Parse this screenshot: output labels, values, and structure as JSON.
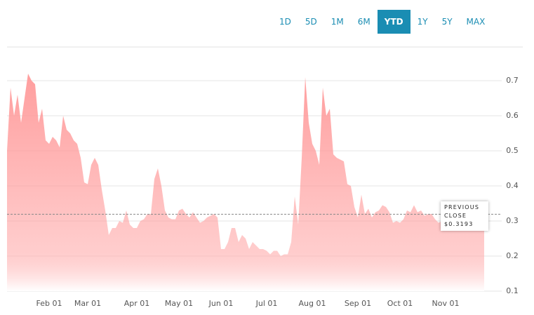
{
  "range_buttons": {
    "options": [
      "1D",
      "5D",
      "1M",
      "6M",
      "YTD",
      "1Y",
      "5Y",
      "MAX"
    ],
    "selected_index": 4
  },
  "chart_data": {
    "type": "area",
    "color": "#ff9999",
    "categories": [
      null,
      null,
      null,
      null,
      null,
      null,
      null,
      null,
      null,
      null,
      null,
      null,
      "Feb 01",
      null,
      null,
      null,
      null,
      null,
      null,
      null,
      null,
      null,
      null,
      "Mar 01",
      null,
      null,
      null,
      null,
      null,
      null,
      null,
      null,
      null,
      null,
      null,
      null,
      null,
      "Apr 01",
      null,
      null,
      null,
      null,
      null,
      null,
      null,
      null,
      null,
      null,
      null,
      "May 01",
      null,
      null,
      null,
      null,
      null,
      null,
      null,
      null,
      null,
      null,
      null,
      "Jun 01",
      null,
      null,
      null,
      null,
      null,
      null,
      null,
      null,
      null,
      null,
      null,
      null,
      "Jul 01",
      null,
      null,
      null,
      null,
      null,
      null,
      null,
      null,
      null,
      null,
      null,
      null,
      "Aug 01",
      null,
      null,
      null,
      null,
      null,
      null,
      null,
      null,
      null,
      null,
      null,
      null,
      "Sep 01",
      null,
      null,
      null,
      null,
      null,
      null,
      null,
      null,
      null,
      null,
      null,
      "Oct 01",
      null,
      null,
      null,
      null,
      null,
      null,
      null,
      null,
      null,
      null,
      null,
      null,
      "Nov 01",
      null,
      null,
      null,
      null,
      null,
      null,
      null,
      null,
      null,
      null,
      null
    ],
    "values": [
      0.5,
      0.68,
      0.6,
      0.66,
      0.58,
      0.65,
      0.72,
      0.7,
      0.69,
      0.58,
      0.62,
      0.53,
      0.52,
      0.54,
      0.53,
      0.51,
      0.6,
      0.56,
      0.55,
      0.53,
      0.52,
      0.48,
      0.41,
      0.405,
      0.46,
      0.48,
      0.46,
      0.39,
      0.33,
      0.26,
      0.28,
      0.28,
      0.3,
      0.295,
      0.33,
      0.29,
      0.28,
      0.28,
      0.3,
      0.305,
      0.32,
      0.32,
      0.42,
      0.45,
      0.4,
      0.33,
      0.31,
      0.305,
      0.305,
      0.33,
      0.335,
      0.32,
      0.31,
      0.325,
      0.31,
      0.295,
      0.3,
      0.31,
      0.315,
      0.32,
      0.31,
      0.22,
      0.22,
      0.24,
      0.28,
      0.28,
      0.24,
      0.26,
      0.25,
      0.22,
      0.24,
      0.23,
      0.22,
      0.22,
      0.215,
      0.205,
      0.215,
      0.215,
      0.2,
      0.205,
      0.205,
      0.24,
      0.37,
      0.29,
      0.48,
      0.71,
      0.58,
      0.52,
      0.5,
      0.46,
      0.68,
      0.6,
      0.62,
      0.49,
      0.48,
      0.475,
      0.47,
      0.405,
      0.4,
      0.34,
      0.31,
      0.375,
      0.32,
      0.335,
      0.31,
      0.325,
      0.33,
      0.345,
      0.34,
      0.325,
      0.295,
      0.3,
      0.295,
      0.305,
      0.33,
      0.325,
      0.345,
      0.325,
      0.33,
      0.315,
      0.32,
      0.32,
      0.305,
      0.295,
      0.3,
      0.295,
      0.3,
      0.295,
      0.3,
      0.305,
      0.3,
      0.295,
      0.29,
      0.285,
      0.29,
      0.29,
      0.285
    ],
    "ylim": [
      0.1,
      0.8
    ],
    "yticks": [
      0.1,
      0.2,
      0.3,
      0.4,
      0.5,
      0.6,
      0.7
    ],
    "grid": true,
    "previous_close": {
      "label": "PREVIOUS CLOSE",
      "value": 0.3193,
      "value_label": "$0.3193"
    }
  }
}
